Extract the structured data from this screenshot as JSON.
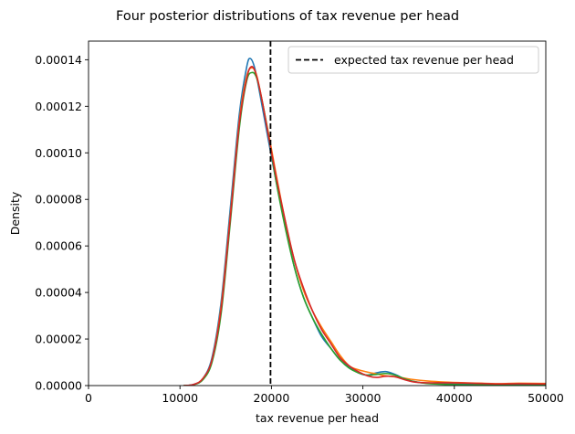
{
  "chart_data": {
    "type": "line",
    "title": "Four posterior distributions of tax revenue per head",
    "xlabel": "tax revenue per head",
    "ylabel": "Density",
    "xlim": [
      0,
      50000
    ],
    "ylim": [
      0,
      0.000148
    ],
    "grid": false,
    "legend_position": "top-right",
    "x_ticks": [
      0,
      10000,
      20000,
      30000,
      40000,
      50000
    ],
    "x_tick_labels": [
      "0",
      "10000",
      "20000",
      "30000",
      "40000",
      "50000"
    ],
    "y_ticks": [
      0,
      2e-05,
      4e-05,
      6e-05,
      8e-05,
      0.0001,
      0.00012,
      0.00014
    ],
    "y_tick_labels": [
      "0.00000",
      "0.00002",
      "0.00004",
      "0.00006",
      "0.00008",
      "0.00010",
      "0.00012",
      "0.00014"
    ],
    "reference_line": {
      "x": 19900,
      "label": "expected tax revenue per head",
      "color": "#000000",
      "style": "dashed"
    },
    "series": [
      {
        "color": "#1f77b4",
        "points": [
          [
            10400,
            0
          ],
          [
            11500,
            5e-07
          ],
          [
            12500,
            3e-06
          ],
          [
            13500,
            1.2e-05
          ],
          [
            14500,
            3.6e-05
          ],
          [
            15500,
            7.6e-05
          ],
          [
            16500,
            0.000117
          ],
          [
            17300,
            0.000137
          ],
          [
            17700,
            0.0001405
          ],
          [
            18200,
            0.000136
          ],
          [
            18800,
            0.000124
          ],
          [
            19500,
            0.000109
          ],
          [
            20500,
            8.8e-05
          ],
          [
            21500,
            6.9e-05
          ],
          [
            22500,
            5.1e-05
          ],
          [
            23500,
            3.8e-05
          ],
          [
            24500,
            2.9e-05
          ],
          [
            25500,
            2.1e-05
          ],
          [
            26500,
            1.6e-05
          ],
          [
            27500,
            1.1e-05
          ],
          [
            28500,
            8e-06
          ],
          [
            29500,
            5.5e-06
          ],
          [
            30500,
            4.5e-06
          ],
          [
            31500,
            5.5e-06
          ],
          [
            32500,
            6e-06
          ],
          [
            33500,
            4.8e-06
          ],
          [
            34500,
            3e-06
          ],
          [
            35500,
            1.8e-06
          ],
          [
            37000,
            1e-06
          ],
          [
            39000,
            7e-07
          ],
          [
            42000,
            5e-07
          ],
          [
            45000,
            4e-07
          ],
          [
            48000,
            3e-07
          ],
          [
            50000,
            3e-07
          ]
        ]
      },
      {
        "color": "#ff7f0e",
        "points": [
          [
            10400,
            0
          ],
          [
            11500,
            4e-07
          ],
          [
            12500,
            3e-06
          ],
          [
            13500,
            1.1e-05
          ],
          [
            14500,
            3.4e-05
          ],
          [
            15500,
            7.3e-05
          ],
          [
            16500,
            0.000114
          ],
          [
            17300,
            0.000133
          ],
          [
            17900,
            0.0001365
          ],
          [
            18400,
            0.000133
          ],
          [
            19000,
            0.000122
          ],
          [
            19700,
            0.000108
          ],
          [
            20500,
            9.1e-05
          ],
          [
            21500,
            7.1e-05
          ],
          [
            22500,
            5.4e-05
          ],
          [
            23500,
            4.1e-05
          ],
          [
            24500,
            3.2e-05
          ],
          [
            25500,
            2.5e-05
          ],
          [
            26500,
            1.9e-05
          ],
          [
            27500,
            1.3e-05
          ],
          [
            28500,
            8.5e-06
          ],
          [
            29500,
            6.8e-06
          ],
          [
            30500,
            5.8e-06
          ],
          [
            31500,
            5e-06
          ],
          [
            32500,
            4.2e-06
          ],
          [
            33500,
            3.8e-06
          ],
          [
            34500,
            3.2e-06
          ],
          [
            35500,
            2.6e-06
          ],
          [
            37000,
            2e-06
          ],
          [
            39000,
            1.5e-06
          ],
          [
            41000,
            1.2e-06
          ],
          [
            43000,
            1e-06
          ],
          [
            45000,
            8e-07
          ],
          [
            47000,
            1e-06
          ],
          [
            50000,
            9e-07
          ]
        ]
      },
      {
        "color": "#2ca02c",
        "points": [
          [
            10400,
            0
          ],
          [
            11500,
            4e-07
          ],
          [
            12500,
            2.5e-06
          ],
          [
            13500,
            1e-05
          ],
          [
            14500,
            3.1e-05
          ],
          [
            15500,
            7e-05
          ],
          [
            16500,
            0.000111
          ],
          [
            17300,
            0.000131
          ],
          [
            17900,
            0.0001345
          ],
          [
            18400,
            0.000132
          ],
          [
            19000,
            0.000122
          ],
          [
            19700,
            0.000107
          ],
          [
            20500,
            8.8e-05
          ],
          [
            21500,
            6.8e-05
          ],
          [
            22500,
            5.1e-05
          ],
          [
            23500,
            3.8e-05
          ],
          [
            24500,
            2.9e-05
          ],
          [
            25500,
            2.2e-05
          ],
          [
            26500,
            1.6e-05
          ],
          [
            27500,
            1.1e-05
          ],
          [
            28500,
            7.5e-06
          ],
          [
            29500,
            5.5e-06
          ],
          [
            30500,
            4.5e-06
          ],
          [
            31500,
            4.8e-06
          ],
          [
            32500,
            5.2e-06
          ],
          [
            33500,
            4.5e-06
          ],
          [
            34500,
            3e-06
          ],
          [
            35500,
            1.8e-06
          ],
          [
            37000,
            9e-07
          ],
          [
            39000,
            5e-07
          ],
          [
            42000,
            3e-07
          ],
          [
            45000,
            2e-07
          ],
          [
            50000,
            2e-07
          ]
        ]
      },
      {
        "color": "#d62728",
        "points": [
          [
            10400,
            0
          ],
          [
            11500,
            5e-07
          ],
          [
            12500,
            3e-06
          ],
          [
            13500,
            1.1e-05
          ],
          [
            14500,
            3.3e-05
          ],
          [
            15500,
            7.2e-05
          ],
          [
            16500,
            0.000113
          ],
          [
            17300,
            0.000132
          ],
          [
            17800,
            0.000137
          ],
          [
            18300,
            0.000134
          ],
          [
            18900,
            0.000124
          ],
          [
            19600,
            0.000109
          ],
          [
            20500,
            9e-05
          ],
          [
            21500,
            7.1e-05
          ],
          [
            22500,
            5.4e-05
          ],
          [
            23500,
            4.2e-05
          ],
          [
            24500,
            3.2e-05
          ],
          [
            25500,
            2.4e-05
          ],
          [
            26500,
            1.8e-05
          ],
          [
            27500,
            1.2e-05
          ],
          [
            28500,
            8.5e-06
          ],
          [
            29500,
            6e-06
          ],
          [
            30500,
            4.2e-06
          ],
          [
            31500,
            3.5e-06
          ],
          [
            32500,
            4e-06
          ],
          [
            33500,
            3.8e-06
          ],
          [
            34500,
            2.6e-06
          ],
          [
            35500,
            1.6e-06
          ],
          [
            37000,
            1.2e-06
          ],
          [
            39000,
            1.2e-06
          ],
          [
            41000,
            1.1e-06
          ],
          [
            43000,
            9e-07
          ],
          [
            45000,
            7e-07
          ],
          [
            47000,
            8e-07
          ],
          [
            50000,
            7e-07
          ]
        ]
      }
    ]
  }
}
